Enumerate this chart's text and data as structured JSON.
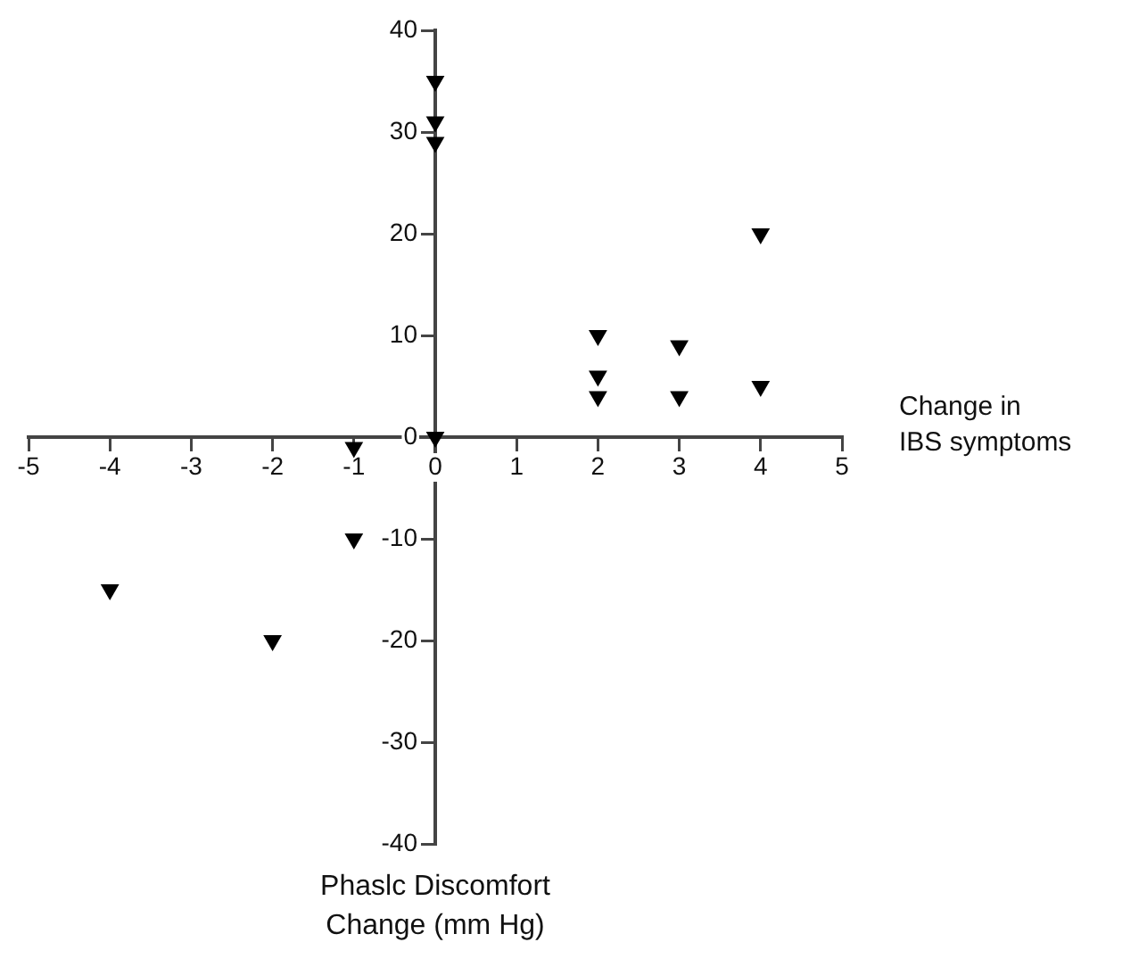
{
  "chart_data": {
    "type": "scatter",
    "xlabel": "Change in IBS symptoms",
    "annotations": [
      "Phaslc Discomfort Change (mm Hg)"
    ],
    "x": [
      0,
      0,
      0,
      0,
      -1,
      -1,
      -4,
      -2,
      2,
      2,
      2,
      3,
      3,
      4,
      4
    ],
    "values": [
      35,
      31,
      29,
      0,
      -1,
      -10,
      -15,
      -20,
      10,
      6,
      4,
      9,
      4,
      20,
      5
    ],
    "color": "#000000",
    "marker": "triangle",
    "grid": false,
    "legend": false,
    "xlim": [
      -5,
      5
    ],
    "xticks": [
      -5,
      -4,
      -3,
      -2,
      -1,
      0,
      1,
      2,
      3,
      4,
      5
    ],
    "ylim": [
      -40,
      40
    ],
    "yticks": [
      -40,
      -30,
      -20,
      -10,
      0,
      10,
      20,
      30,
      40
    ]
  }
}
